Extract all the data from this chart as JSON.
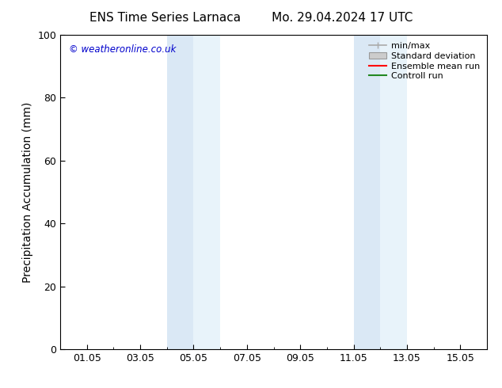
{
  "title_left": "ENS Time Series Larnaca",
  "title_right": "Mo. 29.04.2024 17 UTC",
  "ylabel": "Precipitation Accumulation (mm)",
  "ylim": [
    0,
    100
  ],
  "yticks": [
    0,
    20,
    40,
    60,
    80,
    100
  ],
  "watermark": "© weatheronline.co.uk",
  "watermark_color": "#0000cc",
  "background_color": "#ffffff",
  "plot_bg_color": "#ffffff",
  "shaded_regions": [
    {
      "x_start": 4.0,
      "x_end": 5.0,
      "color": "#dae8f5"
    },
    {
      "x_start": 5.0,
      "x_end": 6.0,
      "color": "#e8f3fa"
    },
    {
      "x_start": 11.0,
      "x_end": 12.0,
      "color": "#dae8f5"
    },
    {
      "x_start": 12.0,
      "x_end": 13.0,
      "color": "#e8f3fa"
    }
  ],
  "xtick_labels": [
    "01.05",
    "03.05",
    "05.05",
    "07.05",
    "09.05",
    "11.05",
    "13.05",
    "15.05"
  ],
  "xtick_positions": [
    1,
    3,
    5,
    7,
    9,
    11,
    13,
    15
  ],
  "xlim": [
    0,
    16
  ],
  "legend_entries": [
    {
      "label": "min/max",
      "color": "#aaaaaa",
      "type": "minmax"
    },
    {
      "label": "Standard deviation",
      "color": "#cccccc",
      "type": "fill"
    },
    {
      "label": "Ensemble mean run",
      "color": "#ff0000",
      "type": "line"
    },
    {
      "label": "Controll run",
      "color": "#228822",
      "type": "line"
    }
  ],
  "title_fontsize": 11,
  "tick_fontsize": 9,
  "label_fontsize": 10,
  "legend_fontsize": 8
}
